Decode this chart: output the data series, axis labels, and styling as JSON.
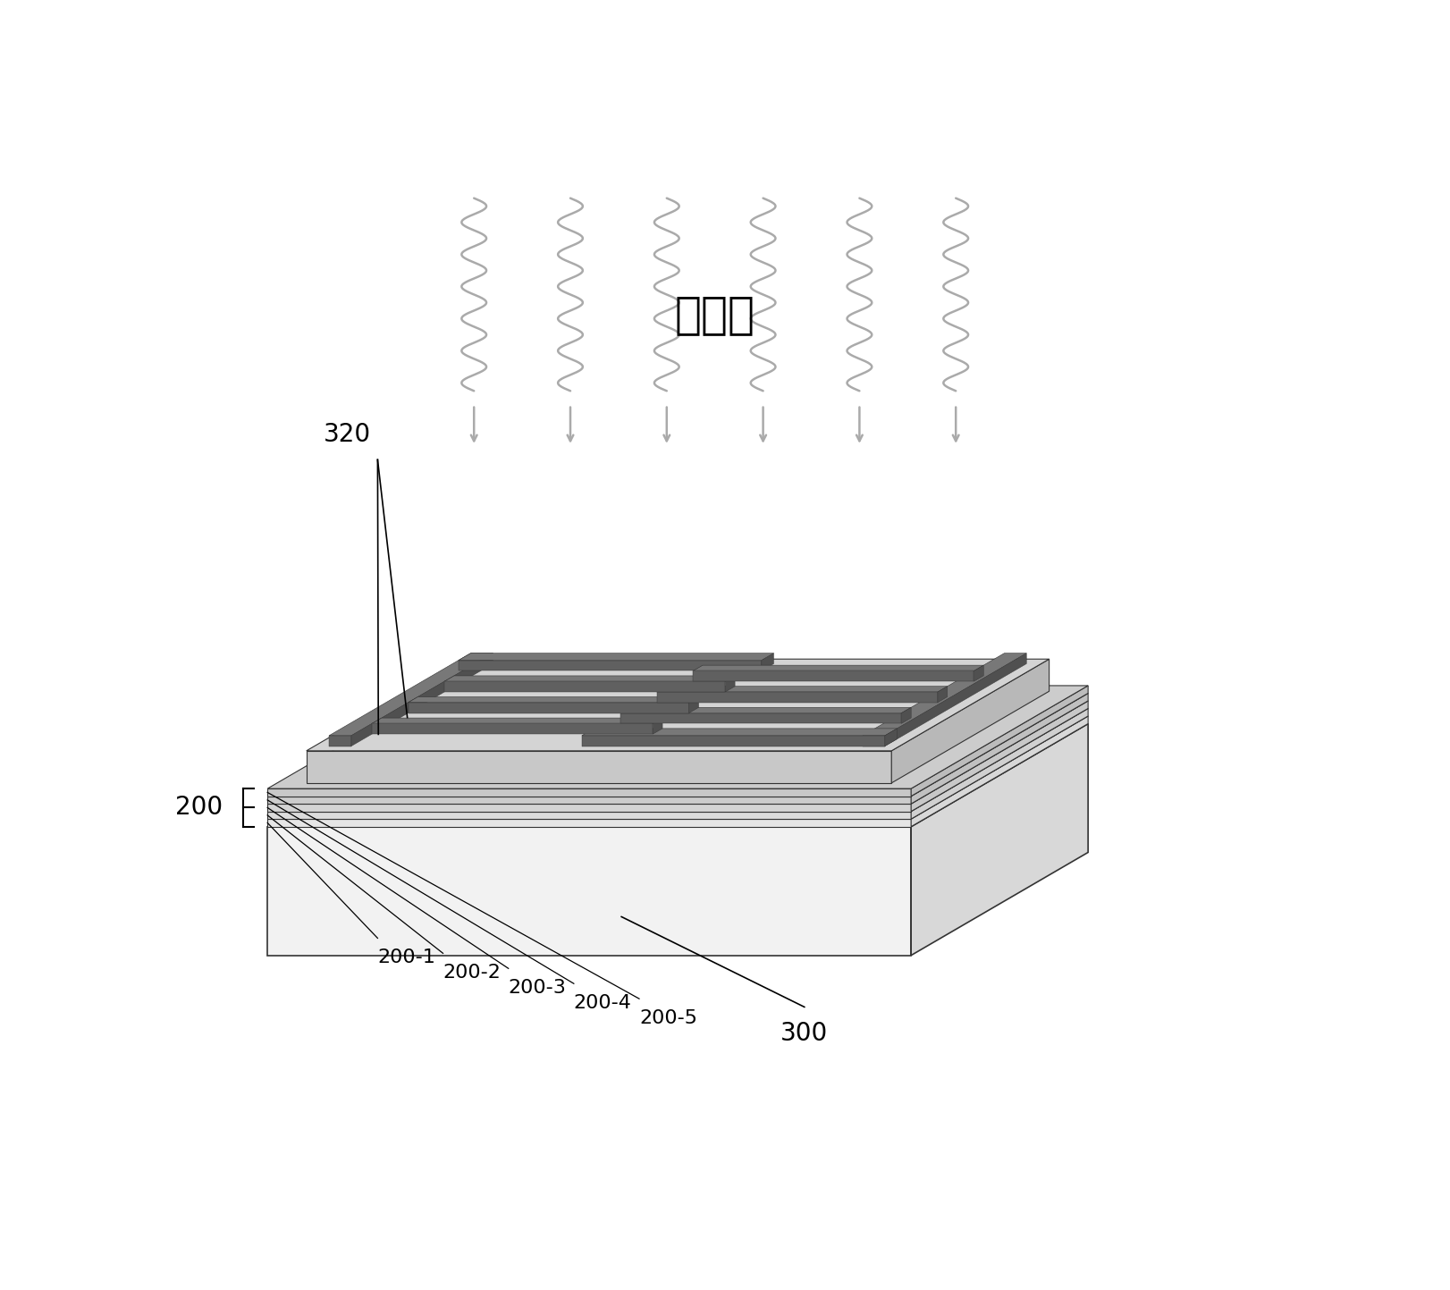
{
  "bg_color": "#ffffff",
  "uv_label": "紫外线",
  "label_320": "320",
  "label_200": "200",
  "label_300": "300",
  "layer_labels": [
    "200-1",
    "200-2",
    "200-3",
    "200-4",
    "200-5"
  ],
  "wave_color": "#aaaaaa",
  "arrow_color": "#999999",
  "substrate_top_color": "#e8e8e8",
  "substrate_front_color": "#f2f2f2",
  "substrate_right_color": "#d8d8d8",
  "layer_colors_front": [
    "#e6e6e6",
    "#dcdcdc",
    "#d4d4d4",
    "#cccccc",
    "#c8c8c8"
  ],
  "layer_colors_top": [
    "#e8e8e8",
    "#e0e0e0",
    "#d8d8d8",
    "#d0d0d0",
    "#cccccc"
  ],
  "layer_colors_right": [
    "#d8d8d8",
    "#d0d0d0",
    "#c8c8c8",
    "#c0c0c0",
    "#bcbcbc"
  ],
  "sem_top_color": "#d4d4d4",
  "sem_front_color": "#c8c8c8",
  "sem_right_color": "#b8b8b8",
  "elec_top_color": "#787878",
  "elec_front_color": "#606060",
  "elec_right_color": "#505050",
  "font_size_label": 18
}
